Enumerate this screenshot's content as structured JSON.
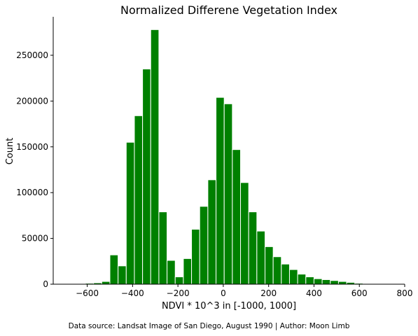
{
  "chart_data": {
    "type": "bar",
    "title": "Normalized Differene Vegetation Index",
    "xlabel": "NDVI * 10^3 in [-1000, 1000]",
    "ylabel": "Count",
    "xlim": [
      -750,
      800
    ],
    "ylim": [
      0,
      292000
    ],
    "x_ticks": [
      -600,
      -400,
      -200,
      0,
      200,
      400,
      600,
      800
    ],
    "y_ticks": [
      0,
      50000,
      100000,
      150000,
      200000,
      250000
    ],
    "bin_width": 36,
    "bar_color": "#008000",
    "grid": false,
    "bins": [
      {
        "x": -590,
        "count": 1000
      },
      {
        "x": -554,
        "count": 1500
      },
      {
        "x": -518,
        "count": 3000
      },
      {
        "x": -482,
        "count": 32000
      },
      {
        "x": -446,
        "count": 20000
      },
      {
        "x": -410,
        "count": 155000
      },
      {
        "x": -374,
        "count": 184000
      },
      {
        "x": -338,
        "count": 235000
      },
      {
        "x": -302,
        "count": 278000
      },
      {
        "x": -266,
        "count": 79000
      },
      {
        "x": -230,
        "count": 26000
      },
      {
        "x": -194,
        "count": 8000
      },
      {
        "x": -158,
        "count": 28000
      },
      {
        "x": -122,
        "count": 60000
      },
      {
        "x": -86,
        "count": 85000
      },
      {
        "x": -50,
        "count": 114000
      },
      {
        "x": -14,
        "count": 204000
      },
      {
        "x": 22,
        "count": 197000
      },
      {
        "x": 58,
        "count": 147000
      },
      {
        "x": 94,
        "count": 111000
      },
      {
        "x": 130,
        "count": 79000
      },
      {
        "x": 166,
        "count": 58000
      },
      {
        "x": 202,
        "count": 41000
      },
      {
        "x": 238,
        "count": 30000
      },
      {
        "x": 274,
        "count": 22000
      },
      {
        "x": 310,
        "count": 16000
      },
      {
        "x": 346,
        "count": 11000
      },
      {
        "x": 382,
        "count": 8000
      },
      {
        "x": 418,
        "count": 6000
      },
      {
        "x": 454,
        "count": 5000
      },
      {
        "x": 490,
        "count": 4000
      },
      {
        "x": 526,
        "count": 3000
      },
      {
        "x": 562,
        "count": 2000
      },
      {
        "x": 598,
        "count": 1000
      }
    ]
  },
  "footer": {
    "source_note": "Data source: Landsat Image of San Diego, August 1990 | Author: Moon Limb"
  }
}
